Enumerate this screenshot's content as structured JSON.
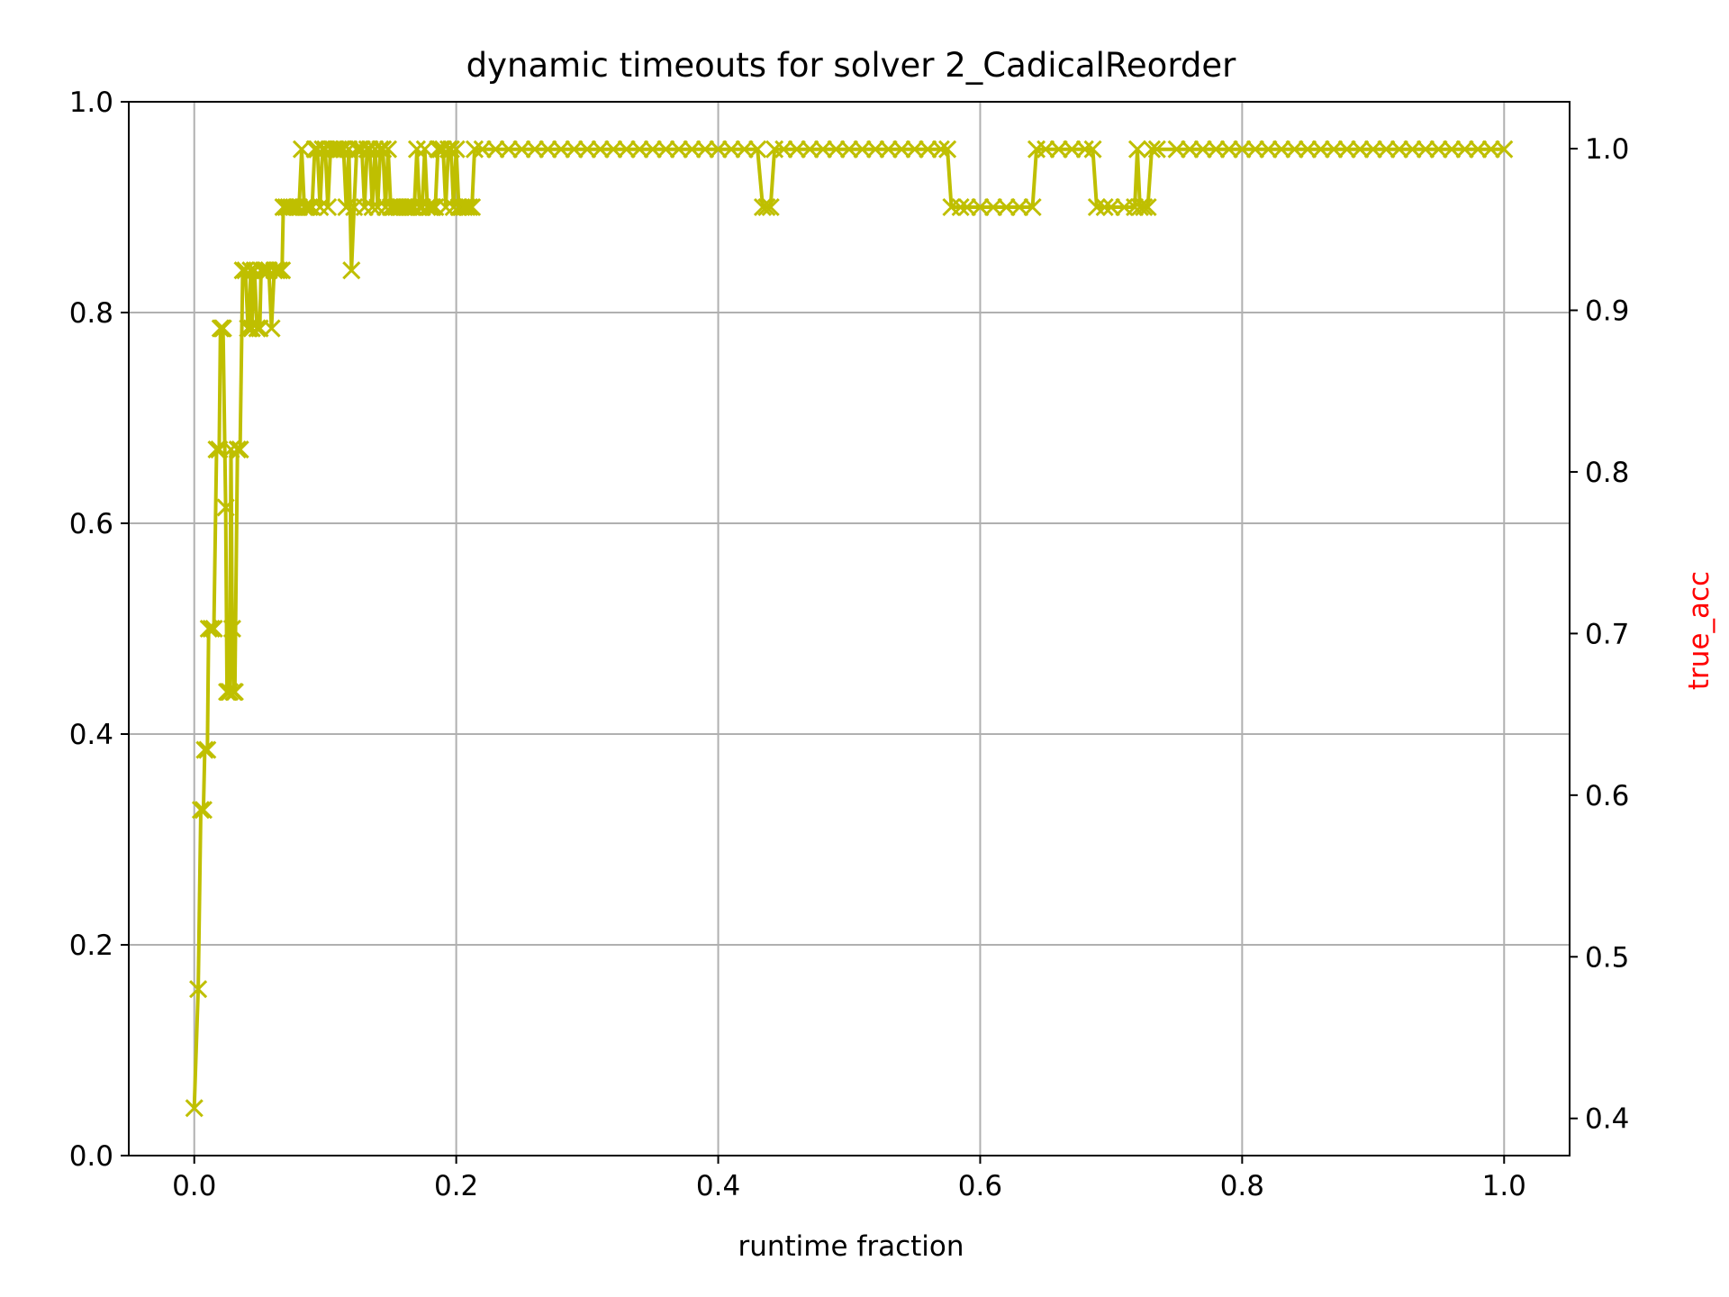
{
  "chart_data": {
    "type": "line",
    "title": "dynamic timeouts for solver 2_CadicalReorder",
    "xlabel": "runtime fraction",
    "ylabel": "",
    "y2label": "true_acc",
    "xlim": [
      -0.05,
      1.05
    ],
    "ylim": [
      0.0,
      1.0
    ],
    "y2lim": [
      0.377,
      1.029
    ],
    "xticks": [
      0.0,
      0.2,
      0.4,
      0.6,
      0.8,
      1.0
    ],
    "xtick_labels": [
      "0.0",
      "0.2",
      "0.4",
      "0.6",
      "0.8",
      "1.0"
    ],
    "yticks": [
      0.0,
      0.2,
      0.4,
      0.6,
      0.8,
      1.0
    ],
    "ytick_labels": [
      "0.0",
      "0.2",
      "0.4",
      "0.6",
      "0.8",
      "1.0"
    ],
    "y2ticks": [
      0.4,
      0.5,
      0.6,
      0.7,
      0.8,
      0.9,
      1.0
    ],
    "y2tick_labels": [
      "0.4",
      "0.5",
      "0.6",
      "0.7",
      "0.8",
      "0.9",
      "1.0"
    ],
    "grid": true,
    "marker": "x",
    "colors": {
      "series": "#bfbf00",
      "y2label": "#ff0000",
      "grid": "#b0b0b0",
      "axes": "#000000"
    },
    "series": [
      {
        "values": [
          [
            0.0,
            0.045
          ],
          [
            0.003,
            0.158
          ],
          [
            0.005,
            0.328
          ],
          [
            0.007,
            0.328
          ],
          [
            0.008,
            0.385
          ],
          [
            0.01,
            0.385
          ],
          [
            0.011,
            0.5
          ],
          [
            0.013,
            0.5
          ],
          [
            0.015,
            0.5
          ],
          [
            0.017,
            0.67
          ],
          [
            0.019,
            0.67
          ],
          [
            0.02,
            0.785
          ],
          [
            0.021,
            0.785
          ],
          [
            0.022,
            0.785
          ],
          [
            0.024,
            0.615
          ],
          [
            0.025,
            0.44
          ],
          [
            0.026,
            0.44
          ],
          [
            0.027,
            0.44
          ],
          [
            0.028,
            0.67
          ],
          [
            0.029,
            0.5
          ],
          [
            0.03,
            0.44
          ],
          [
            0.031,
            0.44
          ],
          [
            0.033,
            0.67
          ],
          [
            0.035,
            0.67
          ],
          [
            0.037,
            0.84
          ],
          [
            0.039,
            0.84
          ],
          [
            0.041,
            0.785
          ],
          [
            0.042,
            0.785
          ],
          [
            0.043,
            0.84
          ],
          [
            0.044,
            0.785
          ],
          [
            0.046,
            0.84
          ],
          [
            0.048,
            0.785
          ],
          [
            0.05,
            0.785
          ],
          [
            0.051,
            0.84
          ],
          [
            0.053,
            0.84
          ],
          [
            0.055,
            0.84
          ],
          [
            0.057,
            0.84
          ],
          [
            0.059,
            0.785
          ],
          [
            0.061,
            0.84
          ],
          [
            0.063,
            0.84
          ],
          [
            0.065,
            0.84
          ],
          [
            0.067,
            0.84
          ],
          [
            0.068,
            0.9
          ],
          [
            0.07,
            0.9
          ],
          [
            0.072,
            0.9
          ],
          [
            0.074,
            0.9
          ],
          [
            0.076,
            0.9
          ],
          [
            0.078,
            0.9
          ],
          [
            0.08,
            0.9
          ],
          [
            0.082,
            0.955
          ],
          [
            0.084,
            0.9
          ],
          [
            0.086,
            0.9
          ],
          [
            0.088,
            0.9
          ],
          [
            0.09,
            0.9
          ],
          [
            0.092,
            0.955
          ],
          [
            0.094,
            0.955
          ],
          [
            0.096,
            0.9
          ],
          [
            0.098,
            0.955
          ],
          [
            0.1,
            0.955
          ],
          [
            0.102,
            0.9
          ],
          [
            0.104,
            0.955
          ],
          [
            0.106,
            0.955
          ],
          [
            0.108,
            0.955
          ],
          [
            0.11,
            0.955
          ],
          [
            0.112,
            0.955
          ],
          [
            0.114,
            0.955
          ],
          [
            0.116,
            0.9
          ],
          [
            0.118,
            0.955
          ],
          [
            0.12,
            0.84
          ],
          [
            0.122,
            0.9
          ],
          [
            0.124,
            0.955
          ],
          [
            0.126,
            0.955
          ],
          [
            0.128,
            0.955
          ],
          [
            0.13,
            0.9
          ],
          [
            0.132,
            0.955
          ],
          [
            0.134,
            0.955
          ],
          [
            0.136,
            0.9
          ],
          [
            0.138,
            0.955
          ],
          [
            0.14,
            0.9
          ],
          [
            0.142,
            0.955
          ],
          [
            0.144,
            0.955
          ],
          [
            0.146,
            0.9
          ],
          [
            0.148,
            0.955
          ],
          [
            0.15,
            0.9
          ],
          [
            0.152,
            0.9
          ],
          [
            0.154,
            0.9
          ],
          [
            0.156,
            0.9
          ],
          [
            0.158,
            0.9
          ],
          [
            0.16,
            0.9
          ],
          [
            0.162,
            0.9
          ],
          [
            0.164,
            0.9
          ],
          [
            0.166,
            0.9
          ],
          [
            0.168,
            0.9
          ],
          [
            0.17,
            0.955
          ],
          [
            0.172,
            0.9
          ],
          [
            0.174,
            0.9
          ],
          [
            0.176,
            0.955
          ],
          [
            0.178,
            0.9
          ],
          [
            0.18,
            0.9
          ],
          [
            0.182,
            0.9
          ],
          [
            0.184,
            0.9
          ],
          [
            0.186,
            0.955
          ],
          [
            0.188,
            0.955
          ],
          [
            0.19,
            0.955
          ],
          [
            0.192,
            0.9
          ],
          [
            0.194,
            0.955
          ],
          [
            0.196,
            0.955
          ],
          [
            0.198,
            0.9
          ],
          [
            0.2,
            0.955
          ],
          [
            0.202,
            0.9
          ],
          [
            0.204,
            0.9
          ],
          [
            0.206,
            0.9
          ],
          [
            0.208,
            0.9
          ],
          [
            0.21,
            0.9
          ],
          [
            0.212,
            0.9
          ],
          [
            0.214,
            0.955
          ],
          [
            0.22,
            0.955
          ],
          [
            0.23,
            0.955
          ],
          [
            0.24,
            0.955
          ],
          [
            0.25,
            0.955
          ],
          [
            0.26,
            0.955
          ],
          [
            0.27,
            0.955
          ],
          [
            0.28,
            0.955
          ],
          [
            0.29,
            0.955
          ],
          [
            0.3,
            0.955
          ],
          [
            0.31,
            0.955
          ],
          [
            0.32,
            0.955
          ],
          [
            0.33,
            0.955
          ],
          [
            0.34,
            0.955
          ],
          [
            0.35,
            0.955
          ],
          [
            0.36,
            0.955
          ],
          [
            0.37,
            0.955
          ],
          [
            0.38,
            0.955
          ],
          [
            0.39,
            0.955
          ],
          [
            0.4,
            0.955
          ],
          [
            0.41,
            0.955
          ],
          [
            0.42,
            0.955
          ],
          [
            0.43,
            0.955
          ],
          [
            0.434,
            0.9
          ],
          [
            0.437,
            0.9
          ],
          [
            0.44,
            0.9
          ],
          [
            0.443,
            0.955
          ],
          [
            0.45,
            0.955
          ],
          [
            0.46,
            0.955
          ],
          [
            0.47,
            0.955
          ],
          [
            0.48,
            0.955
          ],
          [
            0.49,
            0.955
          ],
          [
            0.5,
            0.955
          ],
          [
            0.51,
            0.955
          ],
          [
            0.52,
            0.955
          ],
          [
            0.53,
            0.955
          ],
          [
            0.54,
            0.955
          ],
          [
            0.55,
            0.955
          ],
          [
            0.56,
            0.955
          ],
          [
            0.57,
            0.955
          ],
          [
            0.575,
            0.955
          ],
          [
            0.578,
            0.9
          ],
          [
            0.585,
            0.9
          ],
          [
            0.59,
            0.9
          ],
          [
            0.6,
            0.9
          ],
          [
            0.61,
            0.9
          ],
          [
            0.62,
            0.9
          ],
          [
            0.63,
            0.9
          ],
          [
            0.64,
            0.9
          ],
          [
            0.643,
            0.955
          ],
          [
            0.65,
            0.955
          ],
          [
            0.66,
            0.955
          ],
          [
            0.67,
            0.955
          ],
          [
            0.68,
            0.955
          ],
          [
            0.686,
            0.955
          ],
          [
            0.689,
            0.9
          ],
          [
            0.695,
            0.9
          ],
          [
            0.7,
            0.9
          ],
          [
            0.71,
            0.9
          ],
          [
            0.718,
            0.9
          ],
          [
            0.72,
            0.955
          ],
          [
            0.722,
            0.9
          ],
          [
            0.725,
            0.9
          ],
          [
            0.728,
            0.9
          ],
          [
            0.731,
            0.955
          ],
          [
            0.735,
            0.955
          ],
          [
            0.75,
            0.955
          ],
          [
            0.76,
            0.955
          ],
          [
            0.77,
            0.955
          ],
          [
            0.78,
            0.955
          ],
          [
            0.79,
            0.955
          ],
          [
            0.8,
            0.955
          ],
          [
            0.81,
            0.955
          ],
          [
            0.82,
            0.955
          ],
          [
            0.83,
            0.955
          ],
          [
            0.84,
            0.955
          ],
          [
            0.85,
            0.955
          ],
          [
            0.86,
            0.955
          ],
          [
            0.87,
            0.955
          ],
          [
            0.88,
            0.955
          ],
          [
            0.89,
            0.955
          ],
          [
            0.9,
            0.955
          ],
          [
            0.91,
            0.955
          ],
          [
            0.92,
            0.955
          ],
          [
            0.93,
            0.955
          ],
          [
            0.94,
            0.955
          ],
          [
            0.95,
            0.955
          ],
          [
            0.96,
            0.955
          ],
          [
            0.97,
            0.955
          ],
          [
            0.98,
            0.955
          ],
          [
            0.99,
            0.955
          ],
          [
            1.0,
            0.955
          ]
        ]
      }
    ]
  }
}
